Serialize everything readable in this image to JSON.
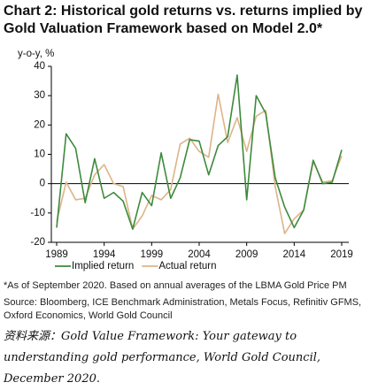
{
  "chart_data": {
    "type": "line",
    "title": "Chart 2: Historical gold returns vs. returns implied by Gold Valuation Framework based on Model 2.0*",
    "ylabel": "y-o-y, %",
    "x": [
      1989,
      1990,
      1991,
      1992,
      1993,
      1994,
      1995,
      1996,
      1997,
      1998,
      1999,
      2000,
      2001,
      2002,
      2003,
      2004,
      2005,
      2006,
      2007,
      2008,
      2009,
      2010,
      2011,
      2012,
      2013,
      2014,
      2015,
      2016,
      2017,
      2018,
      2019
    ],
    "series": [
      {
        "name": "Implied return",
        "color": "#3d8a3d",
        "values": [
          -15,
          17,
          12,
          -6.5,
          8.5,
          -5,
          -3,
          -6,
          -15.5,
          -3,
          -7.5,
          10.5,
          -5,
          2,
          15,
          14.5,
          3,
          13,
          16,
          37,
          -5.5,
          30,
          24,
          2,
          -8,
          -15,
          -9,
          8,
          0,
          0.5,
          11.5
        ]
      },
      {
        "name": "Actual return",
        "color": "#dcb487",
        "values": [
          -13,
          0.5,
          -5.5,
          -5,
          3,
          6.5,
          0,
          -1,
          -15.5,
          -11,
          -4,
          -5.5,
          -2,
          13.5,
          15.5,
          11,
          9,
          30.5,
          14,
          22.5,
          11,
          23,
          25,
          -1,
          -17,
          -12,
          -9,
          7.5,
          0.5,
          1,
          9.5
        ]
      }
    ],
    "xlim": [
      1989,
      2019
    ],
    "xticks": [
      1989,
      1994,
      1999,
      2004,
      2009,
      2014,
      2019
    ],
    "ylim": [
      -20,
      40
    ],
    "yticks": [
      -20,
      -10,
      0,
      10,
      20,
      30,
      40
    ],
    "legend": "bottom",
    "footnote": "*As of September 2020. Based on annual averages of the LBMA Gold Price PM",
    "source": "Source: Bloomberg, ICE Benchmark Administration, Metals Focus, Refinitiv GFMS, Oxford Economics, World Gold Council",
    "credit": "资料来源：Gold Value Framework: Your gateway to understanding gold performance, World Gold Council, December 2020."
  }
}
